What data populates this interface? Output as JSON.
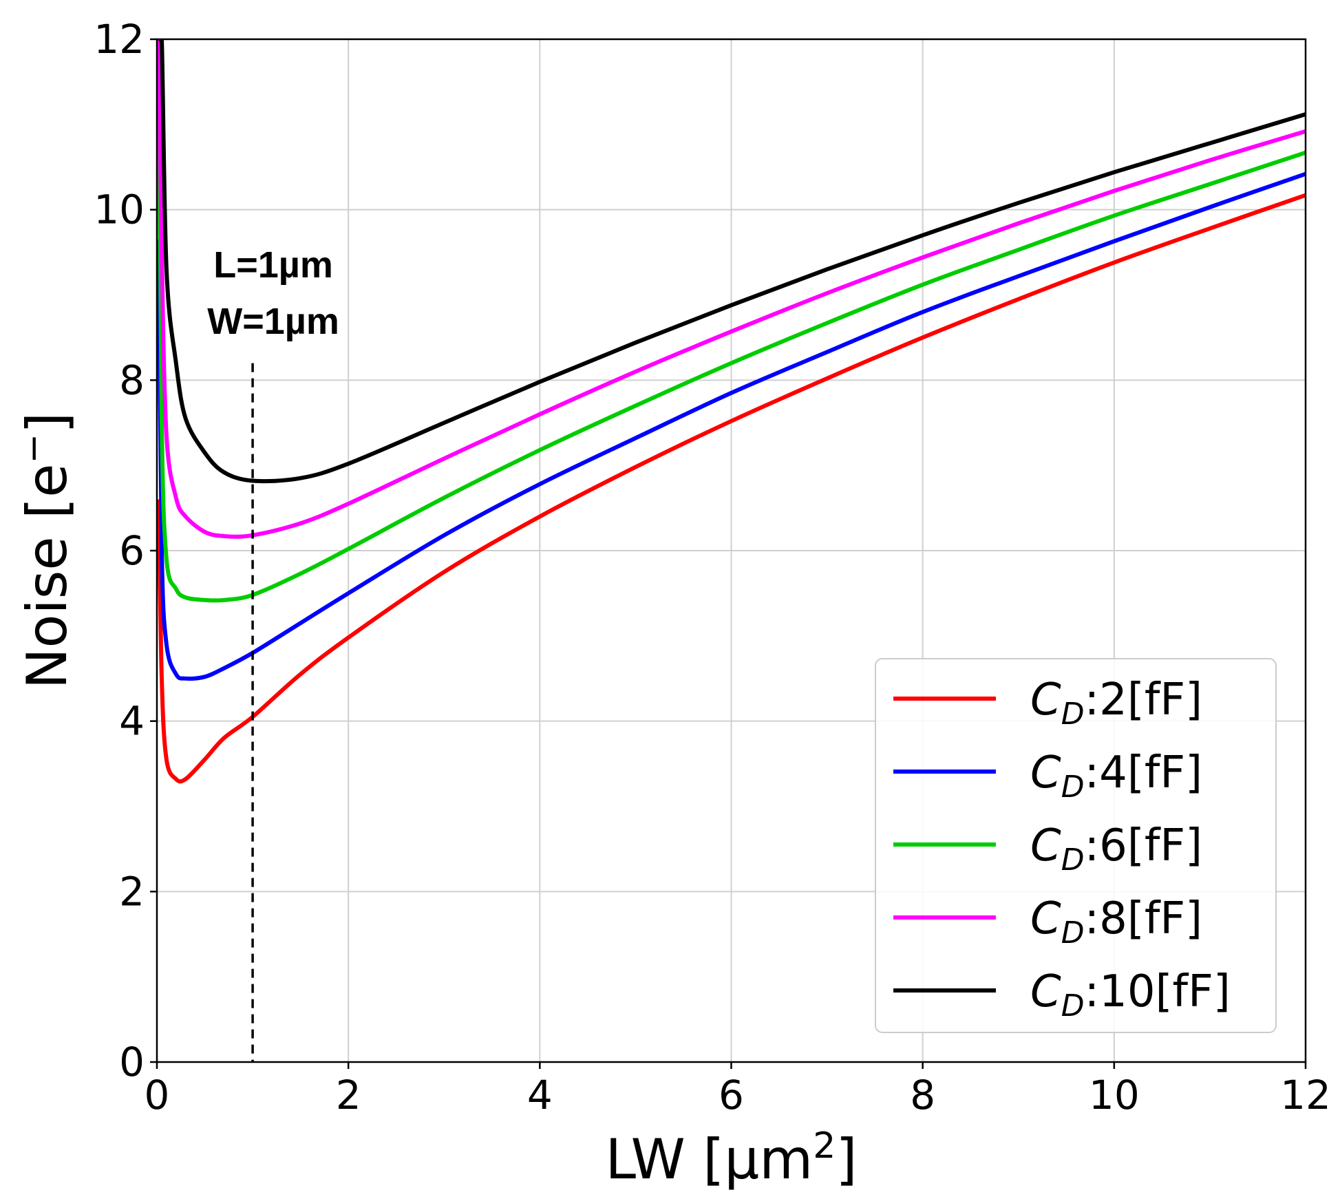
{
  "chart_data": {
    "type": "line",
    "title": "",
    "xlabel_main": "LW [µm",
    "xlabel_sup": "2",
    "xlabel_end": "]",
    "ylabel_main": "Noise [e",
    "ylabel_sup": "−",
    "ylabel_end": "]",
    "xlim": [
      0,
      12
    ],
    "ylim": [
      0,
      12
    ],
    "xticks": [
      "0",
      "2",
      "4",
      "6",
      "8",
      "10",
      "12"
    ],
    "yticks": [
      "0",
      "2",
      "4",
      "6",
      "8",
      "10",
      "12"
    ],
    "grid": true,
    "legend_position": "lower-right",
    "annotation": {
      "line1": "L=1µm",
      "line2": "W=1µm",
      "x": 1,
      "y_top": 8.2
    },
    "x": [
      0.02,
      0.05,
      0.1,
      0.2,
      0.3,
      0.5,
      0.7,
      1.0,
      1.5,
      2,
      3,
      4,
      5,
      6,
      7,
      8,
      9,
      10,
      11,
      12
    ],
    "series": [
      {
        "name": "C",
        "sub": "D",
        "suffix": ":2[fF]",
        "color": "#ff0000",
        "values": [
          6.6,
          4.5,
          3.55,
          3.32,
          3.32,
          3.55,
          3.8,
          4.05,
          4.55,
          4.98,
          5.75,
          6.4,
          6.98,
          7.52,
          8.02,
          8.5,
          8.95,
          9.38,
          9.78,
          10.17
        ]
      },
      {
        "name": "C",
        "sub": "D",
        "suffix": ":4[fF]",
        "color": "#0000ff",
        "values": [
          9.65,
          6.0,
          4.9,
          4.55,
          4.5,
          4.52,
          4.62,
          4.8,
          5.15,
          5.5,
          6.18,
          6.78,
          7.32,
          7.85,
          8.33,
          8.8,
          9.22,
          9.63,
          10.03,
          10.42
        ]
      },
      {
        "name": "C",
        "sub": "D",
        "suffix": ":6[fF]",
        "color": "#00cc00",
        "values": [
          12.0,
          7.5,
          5.9,
          5.55,
          5.45,
          5.42,
          5.42,
          5.48,
          5.73,
          6.02,
          6.62,
          7.18,
          7.7,
          8.2,
          8.67,
          9.12,
          9.53,
          9.93,
          10.3,
          10.67
        ]
      },
      {
        "name": "C",
        "sub": "D",
        "suffix": ":8[fF]",
        "color": "#ff00ff",
        "values": [
          12.0,
          9.5,
          7.35,
          6.62,
          6.4,
          6.22,
          6.17,
          6.18,
          6.32,
          6.55,
          7.08,
          7.6,
          8.1,
          8.57,
          9.02,
          9.44,
          9.84,
          10.22,
          10.58,
          10.92
        ]
      },
      {
        "name": "C",
        "sub": "D",
        "suffix": ":10[fF]",
        "color": "#000000",
        "values": [
          12.0,
          12.0,
          9.3,
          8.2,
          7.55,
          7.15,
          6.92,
          6.82,
          6.85,
          7.02,
          7.5,
          7.98,
          8.44,
          8.88,
          9.3,
          9.7,
          10.08,
          10.44,
          10.78,
          11.12
        ]
      }
    ]
  }
}
